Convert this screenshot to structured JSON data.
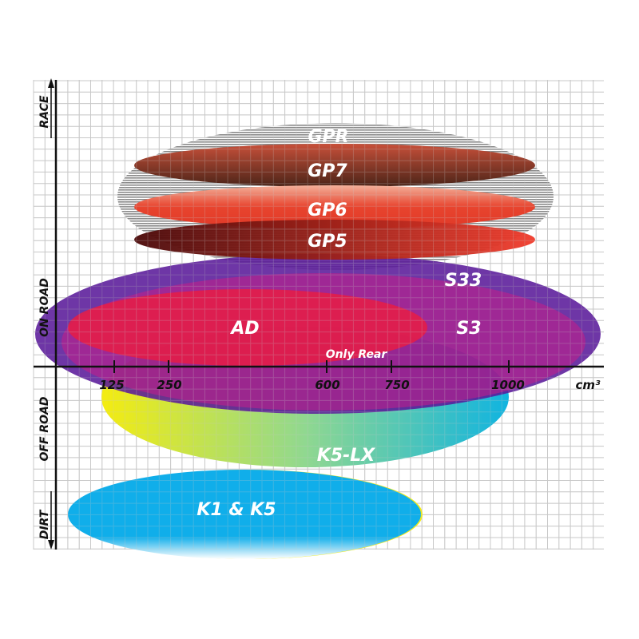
{
  "axes": {
    "y_top": "RACE",
    "y_upper": "ON ROAD",
    "y_lower": "OFF ROAD",
    "y_bottom": "DIRT",
    "x_unit": "cm³",
    "x_ticks": [
      "125",
      "250",
      "600",
      "750",
      "1000"
    ]
  },
  "tyres": [
    {
      "id": "gpr",
      "label": "GPR",
      "fill": "gray-stripes",
      "color": "#9a9a9a"
    },
    {
      "id": "gp7",
      "label": "GP7",
      "color_from": "#c8503a",
      "color_to": "#4a2418"
    },
    {
      "id": "gp6",
      "label": "GP6",
      "color_from": "#f0a890",
      "color_to": "#e03a28"
    },
    {
      "id": "gp5",
      "label": "GP5",
      "color_from": "#4a0808",
      "color_to": "#e83a2a"
    },
    {
      "id": "s33",
      "label": "S33",
      "color": "#6a2a9a"
    },
    {
      "id": "s3",
      "label": "S3",
      "color": "#b0208a"
    },
    {
      "id": "ad",
      "label": "AD",
      "color": "#e01c44",
      "note": "Only Rear"
    },
    {
      "id": "k5lx",
      "label": "K5-LX",
      "color_from": "#f4ec10",
      "color_to": "#10b4e0"
    },
    {
      "id": "k1k5",
      "label": "K1 & K5",
      "color": "#10aeea"
    }
  ]
}
